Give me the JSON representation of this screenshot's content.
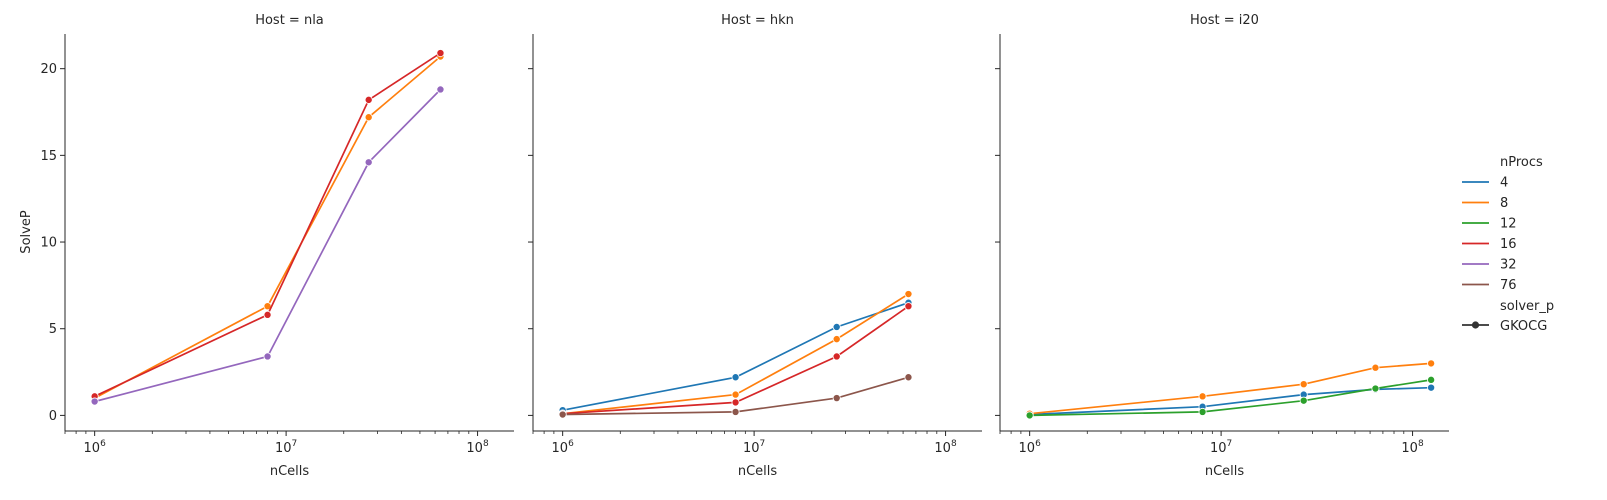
{
  "chart_data": {
    "type": "line",
    "ylabel": "SolveP",
    "ylim": [
      -0.9,
      22
    ],
    "yticks": [
      0,
      5,
      10,
      15,
      20
    ],
    "x_scale": "log",
    "xlim": [
      700000,
      155000000
    ],
    "xticks": [
      1000000,
      10000000,
      100000000
    ],
    "xtick_labels": [
      "10",
      "10",
      "10"
    ],
    "xtick_exponents": [
      "6",
      "7",
      "8"
    ],
    "legend": {
      "title": "nProcs",
      "entries": [
        {
          "label": "4",
          "color": "#1f77b4"
        },
        {
          "label": "8",
          "color": "#ff7f0e"
        },
        {
          "label": "12",
          "color": "#2ca02c"
        },
        {
          "label": "16",
          "color": "#d62728"
        },
        {
          "label": "32",
          "color": "#9467bd"
        },
        {
          "label": "76",
          "color": "#8c564b"
        }
      ],
      "style_title": "solver_p",
      "style_entry": "GKOCG",
      "placement": "right"
    },
    "panels": [
      {
        "title": "Host = nla",
        "xlabel": "nCells",
        "series": [
          {
            "nprocs": "8",
            "color": "#ff7f0e",
            "x": [
              1000000,
              8000000,
              27000000,
              64000000
            ],
            "y": [
              1.0,
              6.3,
              17.2,
              20.7
            ]
          },
          {
            "nprocs": "16",
            "color": "#d62728",
            "x": [
              1000000,
              8000000,
              27000000,
              64000000
            ],
            "y": [
              1.1,
              5.8,
              18.2,
              20.9
            ]
          },
          {
            "nprocs": "32",
            "color": "#9467bd",
            "x": [
              1000000,
              8000000,
              27000000,
              64000000
            ],
            "y": [
              0.8,
              3.4,
              14.6,
              18.8
            ]
          }
        ]
      },
      {
        "title": "Host = hkn",
        "xlabel": "nCells",
        "series": [
          {
            "nprocs": "4",
            "color": "#1f77b4",
            "x": [
              1000000,
              8000000,
              27000000,
              64000000
            ],
            "y": [
              0.3,
              2.2,
              5.1,
              6.5
            ]
          },
          {
            "nprocs": "8",
            "color": "#ff7f0e",
            "x": [
              1000000,
              8000000,
              27000000,
              64000000
            ],
            "y": [
              0.1,
              1.2,
              4.4,
              7.0
            ]
          },
          {
            "nprocs": "16",
            "color": "#d62728",
            "x": [
              1000000,
              8000000,
              27000000,
              64000000
            ],
            "y": [
              0.1,
              0.75,
              3.4,
              6.3
            ]
          },
          {
            "nprocs": "76",
            "color": "#8c564b",
            "x": [
              1000000,
              8000000,
              27000000,
              64000000
            ],
            "y": [
              0.05,
              0.2,
              1.0,
              2.2
            ]
          }
        ]
      },
      {
        "title": "Host = i20",
        "xlabel": "nCells",
        "series": [
          {
            "nprocs": "4",
            "color": "#1f77b4",
            "x": [
              1000000,
              8000000,
              27000000,
              64000000,
              125000000
            ],
            "y": [
              0.05,
              0.5,
              1.2,
              1.5,
              1.6
            ]
          },
          {
            "nprocs": "8",
            "color": "#ff7f0e",
            "x": [
              1000000,
              8000000,
              27000000,
              64000000,
              125000000
            ],
            "y": [
              0.1,
              1.1,
              1.8,
              2.75,
              3.0
            ]
          },
          {
            "nprocs": "12",
            "color": "#2ca02c",
            "x": [
              1000000,
              8000000,
              27000000,
              64000000,
              125000000
            ],
            "y": [
              0.0,
              0.2,
              0.85,
              1.55,
              2.05
            ]
          }
        ]
      }
    ]
  }
}
